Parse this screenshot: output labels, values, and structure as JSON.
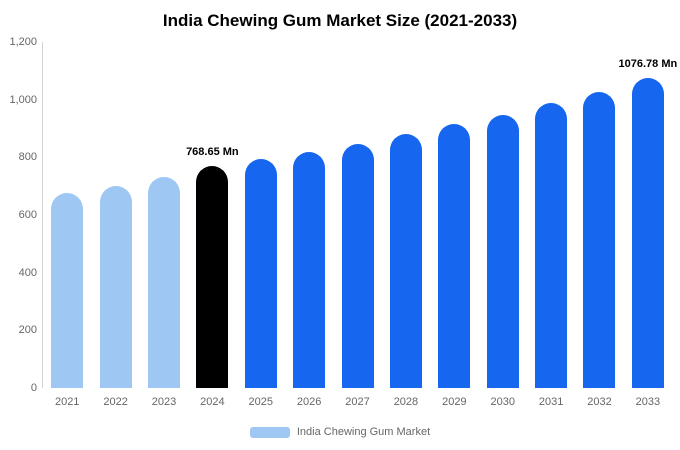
{
  "chart_data": {
    "type": "bar",
    "title": "India Chewing Gum Market Size (2021-2033)",
    "categories": [
      "2021",
      "2022",
      "2023",
      "2024",
      "2025",
      "2026",
      "2027",
      "2028",
      "2029",
      "2030",
      "2031",
      "2032",
      "2033"
    ],
    "values": [
      675,
      700,
      732,
      768.65,
      795,
      820,
      848,
      882,
      915,
      948,
      988,
      1028,
      1076.78
    ],
    "ylim": [
      0,
      1200
    ],
    "ytick_values": [
      0,
      200,
      400,
      600,
      800,
      1000,
      1200
    ],
    "ytick_labels": [
      "0",
      "200",
      "400",
      "600",
      "800",
      "1,000",
      "1,200"
    ],
    "grid": false,
    "legend_position": "bottom",
    "colors": {
      "historical": "#9EC8F3",
      "highlight": "#000000",
      "forecast": "#1666F0"
    },
    "color_map": [
      "historical",
      "historical",
      "historical",
      "highlight",
      "forecast",
      "forecast",
      "forecast",
      "forecast",
      "forecast",
      "forecast",
      "forecast",
      "forecast",
      "forecast"
    ],
    "annotations": [
      {
        "index": 3,
        "text": "768.65 Mn"
      },
      {
        "index": 12,
        "text": "1076.78 Mn"
      }
    ],
    "legend": [
      {
        "label": "India Chewing Gum Market",
        "color": "#9EC8F3"
      }
    ]
  }
}
